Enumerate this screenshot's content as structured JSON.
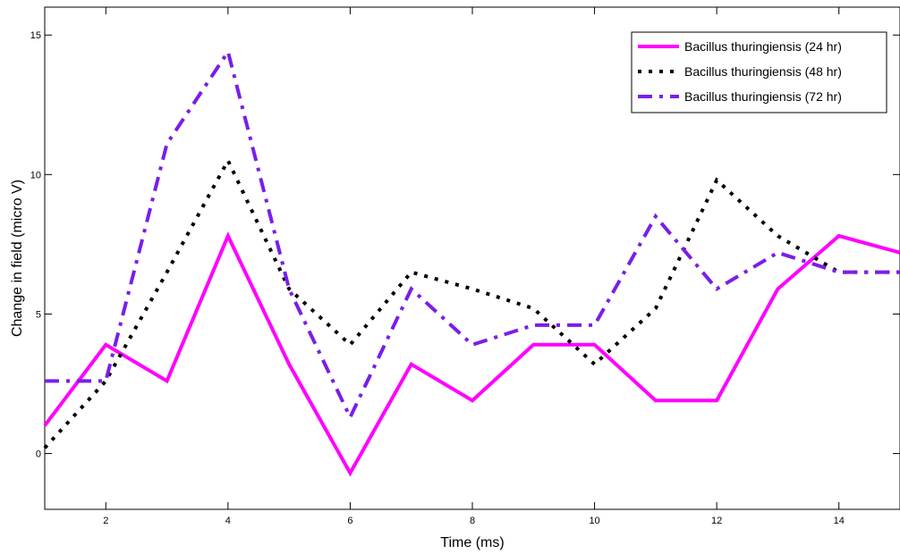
{
  "chart_data": {
    "type": "line",
    "title": "",
    "xlabel": "Time (ms)",
    "ylabel": "Change in field (micro V)",
    "xlim": [
      1,
      15
    ],
    "ylim": [
      -2,
      16
    ],
    "xticks": [
      2,
      4,
      6,
      8,
      10,
      12,
      14
    ],
    "yticks": [
      0,
      5,
      10,
      15
    ],
    "grid": false,
    "legend_position": "top-right",
    "x": [
      1,
      2,
      3,
      4,
      5,
      6,
      7,
      8,
      9,
      10,
      11,
      12,
      13,
      14,
      15
    ],
    "series": [
      {
        "name": "Bacillus thuringiensis (24 hr)",
        "color": "#ff00ff",
        "line_style": "solid",
        "values": [
          1.0,
          3.9,
          2.6,
          7.8,
          3.2,
          -0.7,
          3.2,
          1.9,
          3.9,
          3.9,
          1.9,
          1.9,
          5.9,
          7.8,
          7.2
        ]
      },
      {
        "name": "Bacillus thuringiensis (48 hr)",
        "color": "#000000",
        "line_style": "dotted",
        "values": [
          0.2,
          2.6,
          6.5,
          10.5,
          5.9,
          3.9,
          6.5,
          5.9,
          5.2,
          3.2,
          5.2,
          9.8,
          7.8,
          6.5,
          6.5
        ]
      },
      {
        "name": "Bacillus thuringiensis (72 hr)",
        "color": "#7a1ee8",
        "line_style": "dashdot",
        "values": [
          2.6,
          2.6,
          11.1,
          14.4,
          5.9,
          1.3,
          5.9,
          3.9,
          4.6,
          4.6,
          8.5,
          5.9,
          7.2,
          6.5,
          6.5
        ]
      }
    ]
  }
}
